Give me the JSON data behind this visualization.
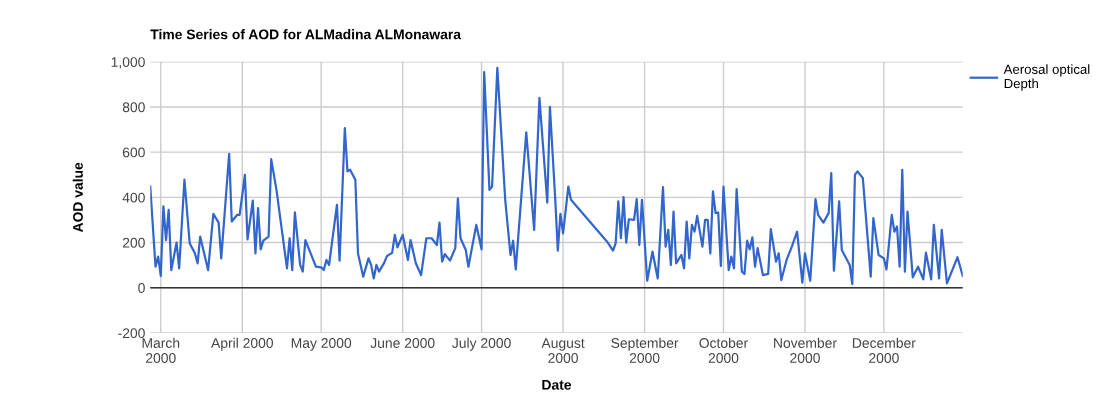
{
  "chart_data": {
    "type": "line",
    "title": "Time Series of AOD for ALMadina ALMonawara",
    "xlabel": "Date",
    "ylabel": "AOD value",
    "x": [
      "2000-02-26",
      "2000-02-28",
      "2000-02-29",
      "2000-03-01",
      "2000-03-02",
      "2000-03-03",
      "2000-03-04",
      "2000-03-05",
      "2000-03-07",
      "2000-03-08",
      "2000-03-10",
      "2000-03-12",
      "2000-03-14",
      "2000-03-15",
      "2000-03-16",
      "2000-03-19",
      "2000-03-21",
      "2000-03-23",
      "2000-03-24",
      "2000-03-27",
      "2000-03-28",
      "2000-03-30",
      "2000-03-31",
      "2000-04-02",
      "2000-04-03",
      "2000-04-05",
      "2000-04-06",
      "2000-04-07",
      "2000-04-08",
      "2000-04-09",
      "2000-04-11",
      "2000-04-12",
      "2000-04-14",
      "2000-04-18",
      "2000-04-19",
      "2000-04-20",
      "2000-04-21",
      "2000-04-23",
      "2000-04-24",
      "2000-04-25",
      "2000-04-29",
      "2000-05-01",
      "2000-05-02",
      "2000-05-03",
      "2000-05-04",
      "2000-05-07",
      "2000-05-08",
      "2000-05-10",
      "2000-05-11",
      "2000-05-12",
      "2000-05-14",
      "2000-05-15",
      "2000-05-17",
      "2000-05-19",
      "2000-05-20",
      "2000-05-21",
      "2000-05-22",
      "2000-05-23",
      "2000-05-25",
      "2000-05-26",
      "2000-05-28",
      "2000-05-29",
      "2000-05-30",
      "2000-06-01",
      "2000-06-03",
      "2000-06-04",
      "2000-06-06",
      "2000-06-08",
      "2000-06-10",
      "2000-06-12",
      "2000-06-14",
      "2000-06-15",
      "2000-06-16",
      "2000-06-17",
      "2000-06-19",
      "2000-06-21",
      "2000-06-22",
      "2000-06-23",
      "2000-06-25",
      "2000-06-26",
      "2000-06-29",
      "2000-07-01",
      "2000-07-02",
      "2000-07-04",
      "2000-07-05",
      "2000-07-07",
      "2000-07-10",
      "2000-07-12",
      "2000-07-13",
      "2000-07-14",
      "2000-07-18",
      "2000-07-21",
      "2000-07-23",
      "2000-07-26",
      "2000-07-27",
      "2000-07-29",
      "2000-07-30",
      "2000-07-31",
      "2000-08-01",
      "2000-08-03",
      "2000-08-04",
      "2000-08-18",
      "2000-08-20",
      "2000-08-21",
      "2000-08-22",
      "2000-08-23",
      "2000-08-24",
      "2000-08-25",
      "2000-08-26",
      "2000-08-28",
      "2000-08-29",
      "2000-08-30",
      "2000-08-31",
      "2000-09-02",
      "2000-09-04",
      "2000-09-06",
      "2000-09-08",
      "2000-09-09",
      "2000-09-10",
      "2000-09-11",
      "2000-09-12",
      "2000-09-13",
      "2000-09-15",
      "2000-09-16",
      "2000-09-17",
      "2000-09-18",
      "2000-09-19",
      "2000-09-20",
      "2000-09-21",
      "2000-09-23",
      "2000-09-24",
      "2000-09-25",
      "2000-09-26",
      "2000-09-27",
      "2000-09-28",
      "2000-09-29",
      "2000-09-30",
      "2000-10-01",
      "2000-10-03",
      "2000-10-04",
      "2000-10-05",
      "2000-10-06",
      "2000-10-08",
      "2000-10-09",
      "2000-10-10",
      "2000-10-11",
      "2000-10-12",
      "2000-10-13",
      "2000-10-14",
      "2000-10-16",
      "2000-10-18",
      "2000-10-19",
      "2000-10-21",
      "2000-10-22",
      "2000-10-23",
      "2000-10-25",
      "2000-10-27",
      "2000-10-29",
      "2000-10-31",
      "2000-11-01",
      "2000-11-03",
      "2000-11-05",
      "2000-11-06",
      "2000-11-08",
      "2000-11-10",
      "2000-11-11",
      "2000-11-12",
      "2000-11-14",
      "2000-11-15",
      "2000-11-18",
      "2000-11-19",
      "2000-11-20",
      "2000-11-21",
      "2000-11-23",
      "2000-11-26",
      "2000-11-27",
      "2000-11-29",
      "2000-12-01",
      "2000-12-02",
      "2000-12-04",
      "2000-12-05",
      "2000-12-06",
      "2000-12-07",
      "2000-12-08",
      "2000-12-09",
      "2000-12-10",
      "2000-12-12",
      "2000-12-14",
      "2000-12-16",
      "2000-12-17",
      "2000-12-19",
      "2000-12-20",
      "2000-12-22",
      "2000-12-23",
      "2000-12-25",
      "2000-12-29",
      "2000-12-31"
    ],
    "series": [
      {
        "name": "Aerosal optical\nDepth",
        "color": "#3366cc",
        "values": [
          448,
          93,
          138,
          52,
          360,
          211,
          345,
          78,
          200,
          86,
          478,
          197,
          152,
          108,
          226,
          78,
          327,
          288,
          130,
          593,
          293,
          322,
          322,
          500,
          214,
          386,
          152,
          352,
          170,
          208,
          226,
          569,
          433,
          86,
          219,
          78,
          333,
          101,
          71,
          211,
          93,
          90,
          78,
          123,
          101,
          367,
          120,
          707,
          515,
          522,
          478,
          152,
          49,
          130,
          101,
          41,
          101,
          71,
          111,
          140,
          155,
          234,
          179,
          234,
          123,
          211,
          108,
          56,
          219,
          219,
          189,
          288,
          115,
          149,
          120,
          175,
          396,
          219,
          167,
          93,
          278,
          170,
          954,
          433,
          448,
          973,
          389,
          145,
          208,
          81,
          688,
          256,
          840,
          377,
          800,
          396,
          164,
          327,
          241,
          448,
          389,
          200,
          164,
          197,
          382,
          219,
          401,
          200,
          303,
          300,
          392,
          189,
          389,
          31,
          160,
          41,
          445,
          182,
          256,
          101,
          337,
          108,
          145,
          86,
          293,
          130,
          278,
          248,
          318,
          182,
          300,
          300,
          152,
          426,
          330,
          333,
          96,
          448,
          78,
          138,
          86,
          436,
          71,
          61,
          208,
          170,
          223,
          93,
          175,
          56,
          61,
          259,
          115,
          152,
          34,
          123,
          182,
          248,
          22,
          152,
          31,
          392,
          322,
          288,
          330,
          507,
          75,
          382,
          167,
          101,
          16,
          500,
          515,
          485,
          49,
          308,
          145,
          130,
          81,
          322,
          248,
          271,
          93,
          522,
          71,
          337,
          46,
          93,
          37,
          155,
          37,
          278,
          41,
          256,
          19,
          135,
          52
        ]
      }
    ],
    "xlim": [
      "2000-02-26",
      "2000-12-31"
    ],
    "xticks": [
      {
        "value": "2000-03-01",
        "label": "March\n2000"
      },
      {
        "value": "2000-04-01",
        "label": "April 2000"
      },
      {
        "value": "2000-05-01",
        "label": "May 2000"
      },
      {
        "value": "2000-06-01",
        "label": "June 2000"
      },
      {
        "value": "2000-07-01",
        "label": "July 2000"
      },
      {
        "value": "2000-08-01",
        "label": "August\n2000"
      },
      {
        "value": "2000-09-01",
        "label": "September\n2000"
      },
      {
        "value": "2000-10-01",
        "label": "October\n2000"
      },
      {
        "value": "2000-11-01",
        "label": "November\n2000"
      },
      {
        "value": "2000-12-01",
        "label": "December\n2000"
      }
    ],
    "ylim": [
      -200,
      1000
    ],
    "yticks": [
      {
        "value": -200,
        "label": "-200"
      },
      0,
      200,
      400,
      600,
      800,
      {
        "value": 1000,
        "label": "1,000"
      }
    ],
    "ref_lines": [
      {
        "axis": "y",
        "value": 0,
        "color": "#333333"
      }
    ],
    "grid": true,
    "legend": "top right",
    "marker": "none",
    "line_style": "solid"
  }
}
